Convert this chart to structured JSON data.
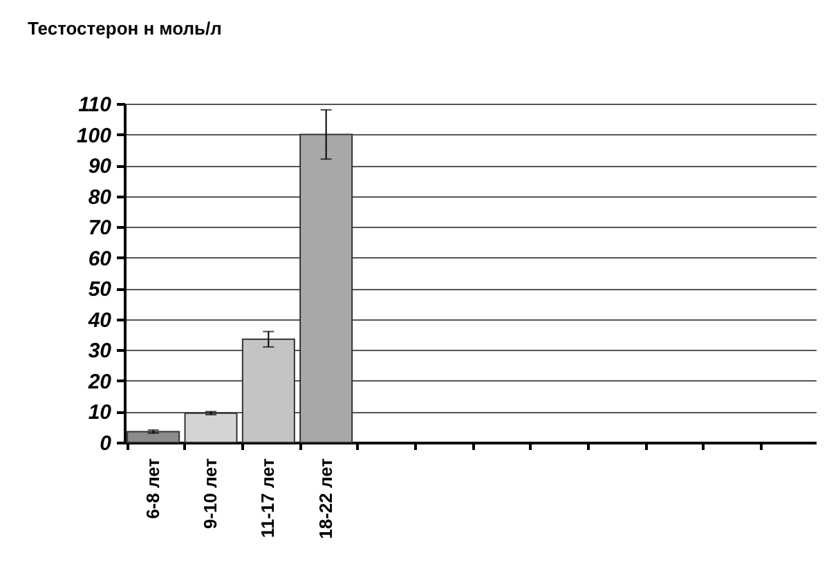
{
  "chart_data": {
    "type": "bar",
    "title": "Тестостерон н моль/л",
    "categories": [
      "6-8 лет",
      "9-10 лет",
      "11-17 лет",
      "18-22 лет",
      null,
      null,
      null,
      null,
      null,
      null,
      null,
      null
    ],
    "values": [
      3.5,
      9.5,
      33.5,
      100,
      null,
      null,
      null,
      null,
      null,
      null,
      null,
      null
    ],
    "errors": [
      0.5,
      0.5,
      2.5,
      8,
      null,
      null,
      null,
      null,
      null,
      null,
      null,
      null
    ],
    "colors": [
      "#8c8c8c",
      "#d4d4d4",
      "#c4c4c4",
      "#a8a8a8",
      "#a8a8a8",
      "#a8a8a8",
      "#a8a8a8",
      "#a8a8a8",
      "#a8a8a8",
      "#a8a8a8",
      "#a8a8a8",
      "#a8a8a8"
    ],
    "ylim": [
      0,
      110
    ],
    "yticks": [
      0,
      10,
      20,
      30,
      40,
      50,
      60,
      70,
      80,
      90,
      100,
      110
    ],
    "grid": "y"
  }
}
